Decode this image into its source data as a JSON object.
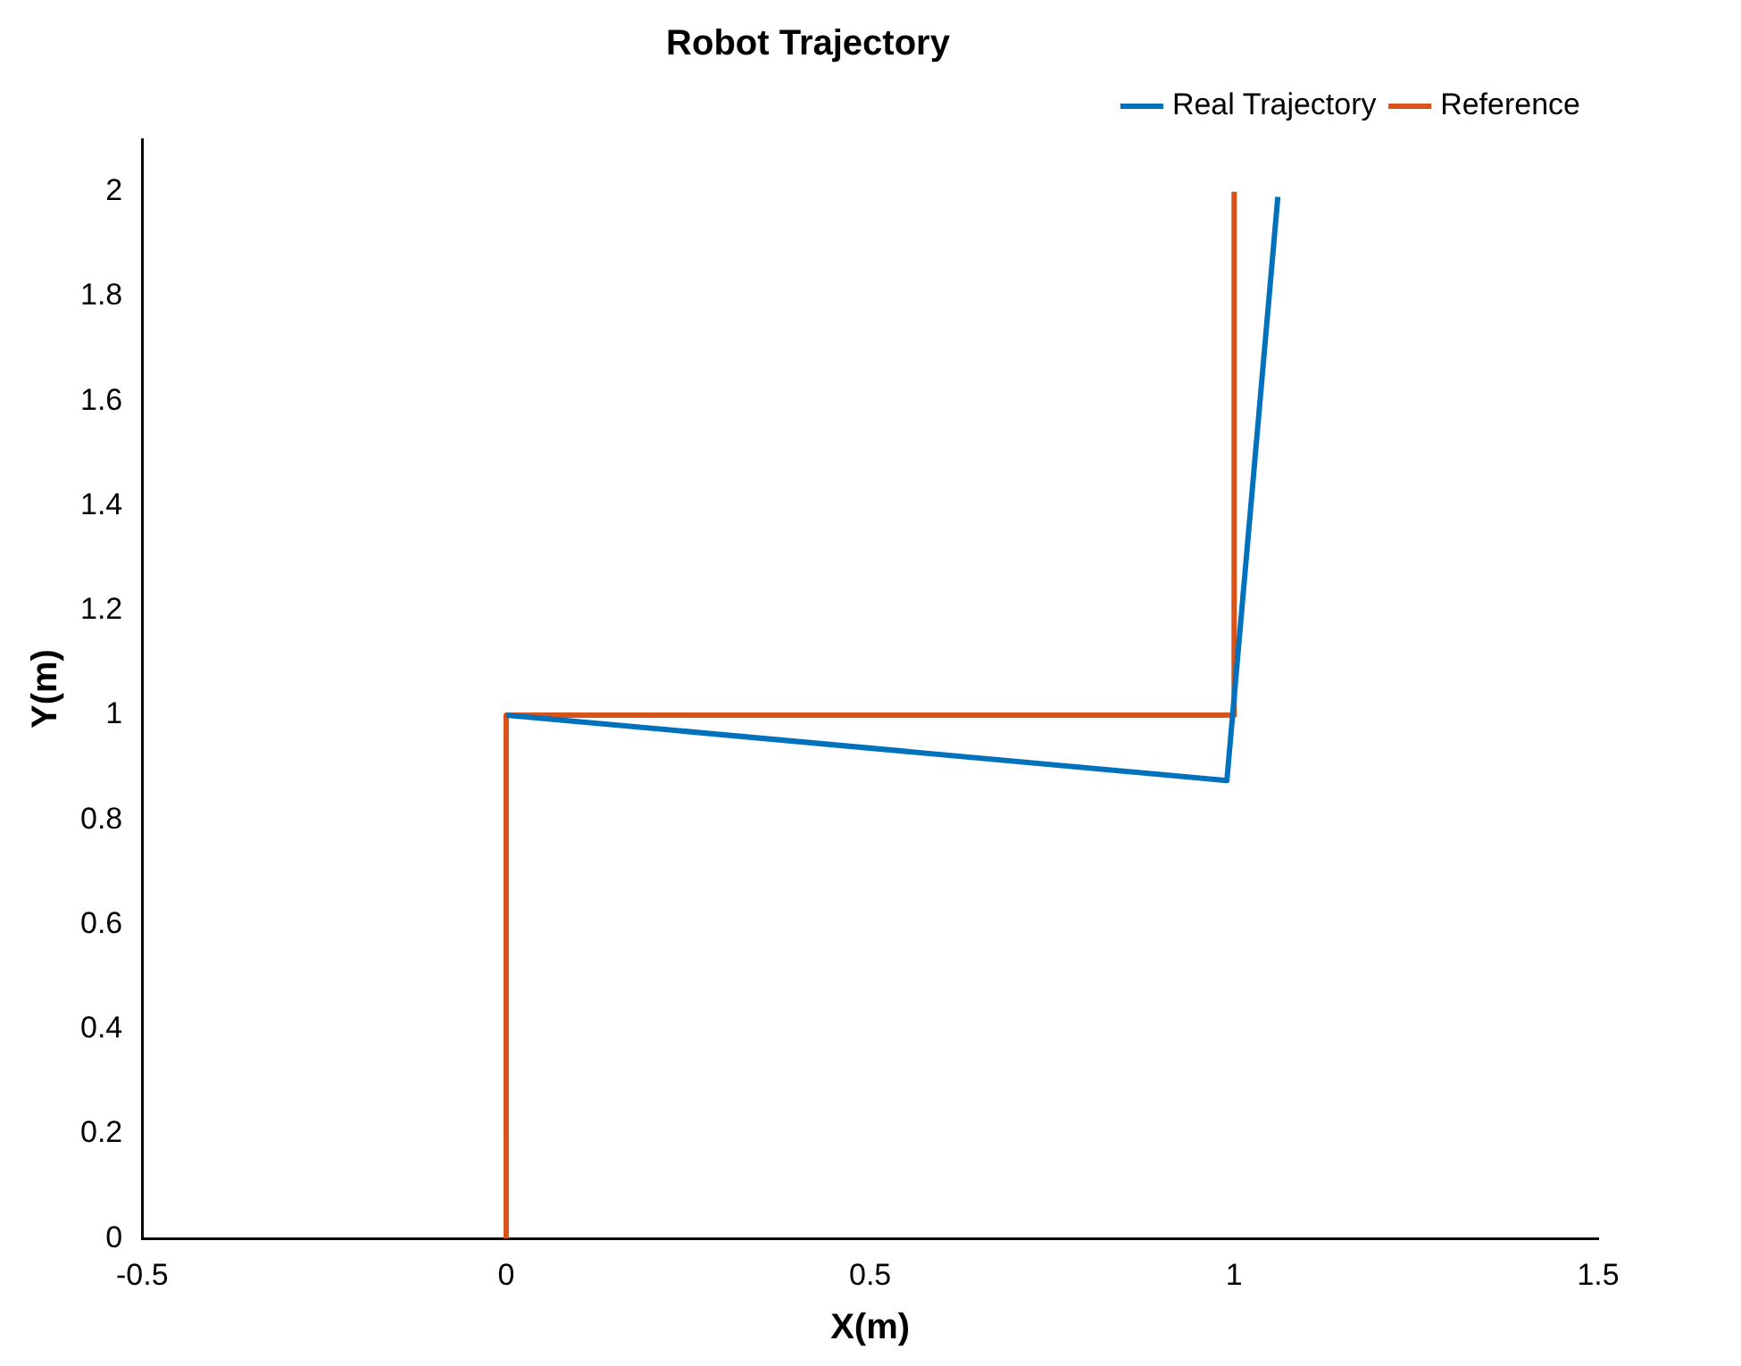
{
  "chart_data": {
    "type": "line",
    "title": "Robot Trajectory",
    "xlabel": "X(m)",
    "ylabel": "Y(m)",
    "xlim": [
      -0.5,
      1.5
    ],
    "xticks": [
      -0.5,
      0,
      0.5,
      1,
      1.5
    ],
    "ylim": [
      0,
      2.1
    ],
    "yticks": [
      0,
      0.2,
      0.4,
      0.6,
      0.8,
      1,
      1.2,
      1.4,
      1.6,
      1.8,
      2
    ],
    "grid": false,
    "legend": "top right",
    "marker": "none",
    "line_style": "solid",
    "series": [
      {
        "name": "Real Trajectory",
        "color": "#0072bd",
        "x": [
          0,
          0.99,
          1.06
        ],
        "values": [
          1,
          0.875,
          1.99
        ]
      },
      {
        "name": "Reference",
        "color": "#d95319",
        "x": [
          0,
          0,
          1,
          1
        ],
        "values": [
          0,
          1,
          1,
          2
        ]
      }
    ]
  }
}
